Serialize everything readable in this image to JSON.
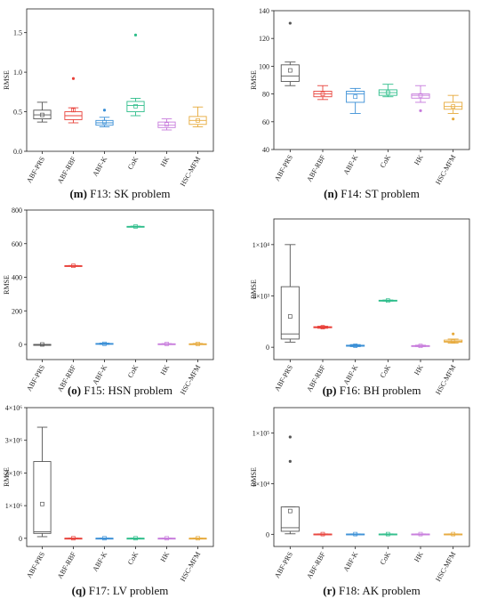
{
  "chart_data": [
    {
      "type": "box",
      "panel": "m",
      "caption_prefix": "(m)",
      "caption_text": " F13: SK problem",
      "ylabel": "RMSE",
      "ylim": [
        0,
        1.8
      ],
      "yticks": [
        0.0,
        0.5,
        1.0,
        1.5
      ],
      "ytick_labels": [
        "0.0",
        "0.5",
        "1.0",
        "1.5"
      ],
      "categories": [
        "ABF-PRS",
        "ABF-RBF",
        "ABF-K",
        "CoK",
        "HK",
        "HSC-MFM"
      ],
      "colors": [
        "#555555",
        "#e8413a",
        "#3a8fd6",
        "#2dbd8a",
        "#c77bdc",
        "#e6a93a"
      ],
      "boxes": [
        {
          "min": 0.37,
          "q1": 0.41,
          "median": 0.46,
          "q3": 0.52,
          "max": 0.62,
          "mean": 0.46,
          "outliers": []
        },
        {
          "min": 0.36,
          "q1": 0.4,
          "median": 0.45,
          "q3": 0.5,
          "max": 0.55,
          "mean": 0.52,
          "outliers": [
            0.92
          ]
        },
        {
          "min": 0.31,
          "q1": 0.33,
          "median": 0.36,
          "q3": 0.39,
          "max": 0.43,
          "mean": 0.37,
          "outliers": [
            0.52
          ]
        },
        {
          "min": 0.45,
          "q1": 0.5,
          "median": 0.58,
          "q3": 0.63,
          "max": 0.67,
          "mean": 0.57,
          "outliers": [
            1.47
          ]
        },
        {
          "min": 0.27,
          "q1": 0.3,
          "median": 0.33,
          "q3": 0.37,
          "max": 0.41,
          "mean": 0.34,
          "outliers": []
        },
        {
          "min": 0.31,
          "q1": 0.34,
          "median": 0.39,
          "q3": 0.44,
          "max": 0.56,
          "mean": 0.39,
          "outliers": []
        }
      ]
    },
    {
      "type": "box",
      "panel": "n",
      "caption_prefix": "(n)",
      "caption_text": " F14: ST problem",
      "ylabel": "RMSE",
      "ylim": [
        40,
        140
      ],
      "yticks": [
        40,
        60,
        80,
        100,
        120,
        140
      ],
      "ytick_labels": [
        "40",
        "60",
        "80",
        "100",
        "120",
        "140"
      ],
      "categories": [
        "ABF-PRS",
        "ABF-RBF",
        "ABF-K",
        "CoK",
        "HK",
        "HSC-MFM"
      ],
      "colors": [
        "#555555",
        "#e8413a",
        "#3a8fd6",
        "#2dbd8a",
        "#c77bdc",
        "#e6a93a"
      ],
      "boxes": [
        {
          "min": 86,
          "q1": 89,
          "median": 93,
          "q3": 101,
          "max": 103,
          "mean": 97,
          "outliers": [
            131
          ]
        },
        {
          "min": 76,
          "q1": 78,
          "median": 80,
          "q3": 82,
          "max": 86,
          "mean": 80,
          "outliers": []
        },
        {
          "min": 66,
          "q1": 74,
          "median": 80,
          "q3": 82,
          "max": 84,
          "mean": 78,
          "outliers": []
        },
        {
          "min": 78,
          "q1": 79,
          "median": 81,
          "q3": 83,
          "max": 87,
          "mean": 81,
          "outliers": []
        },
        {
          "min": 74,
          "q1": 77,
          "median": 79,
          "q3": 80,
          "max": 86,
          "mean": 79,
          "outliers": [
            68
          ]
        },
        {
          "min": 66,
          "q1": 69,
          "median": 71,
          "q3": 74,
          "max": 79,
          "mean": 71,
          "outliers": [
            62
          ]
        }
      ]
    },
    {
      "type": "box",
      "panel": "o",
      "caption_prefix": "(o)",
      "caption_text": " F15: HSN problem",
      "ylabel": "RMSE",
      "ylim": [
        -90,
        800
      ],
      "yticks": [
        0,
        200,
        400,
        600,
        800
      ],
      "ytick_labels": [
        "0",
        "200",
        "400",
        "600",
        "800"
      ],
      "categories": [
        "ABF-PRS",
        "ABF-RBF",
        "ABF-K",
        "CoK",
        "HK",
        "HSC-MFM"
      ],
      "colors": [
        "#555555",
        "#e8413a",
        "#3a8fd6",
        "#2dbd8a",
        "#c77bdc",
        "#e6a93a"
      ],
      "boxes": [
        {
          "min": 0,
          "q1": 0,
          "median": 0,
          "q3": 0,
          "max": 0,
          "mean": 0,
          "outliers": []
        },
        {
          "min": 466,
          "q1": 467,
          "median": 468,
          "q3": 469,
          "max": 470,
          "mean": 468,
          "outliers": []
        },
        {
          "min": 0,
          "q1": 2,
          "median": 4,
          "q3": 6,
          "max": 8,
          "mean": 4,
          "outliers": []
        },
        {
          "min": 700,
          "q1": 701,
          "median": 702,
          "q3": 703,
          "max": 704,
          "mean": 702,
          "outliers": []
        },
        {
          "min": 1,
          "q1": 2,
          "median": 3,
          "q3": 4,
          "max": 5,
          "mean": 3,
          "outliers": []
        },
        {
          "min": 1,
          "q1": 2,
          "median": 3,
          "q3": 4,
          "max": 6,
          "mean": 3,
          "outliers": []
        }
      ]
    },
    {
      "type": "box",
      "panel": "p",
      "caption_prefix": "(p)",
      "caption_text": " F16: BH problem",
      "ylabel": "RMSE",
      "ylim": [
        -1200,
        12500
      ],
      "yticks": [
        0,
        5000,
        10000
      ],
      "ytick_labels": [
        "0",
        "5×10³",
        "1×10⁴"
      ],
      "categories": [
        "ABF-PRS",
        "ABF-RBF",
        "ABF-K",
        "CoK",
        "HK",
        "HSC-MFM"
      ],
      "colors": [
        "#555555",
        "#e8413a",
        "#3a8fd6",
        "#2dbd8a",
        "#c77bdc",
        "#e6a93a"
      ],
      "boxes": [
        {
          "min": 500,
          "q1": 800,
          "median": 1300,
          "q3": 5900,
          "max": 10000,
          "mean": 3000,
          "outliers": []
        },
        {
          "min": 1850,
          "q1": 1900,
          "median": 1950,
          "q3": 2000,
          "max": 2050,
          "mean": 1950,
          "outliers": []
        },
        {
          "min": 60,
          "q1": 100,
          "median": 150,
          "q3": 200,
          "max": 260,
          "mean": 150,
          "outliers": []
        },
        {
          "min": 4500,
          "q1": 4520,
          "median": 4550,
          "q3": 4580,
          "max": 4600,
          "mean": 4550,
          "outliers": []
        },
        {
          "min": 70,
          "q1": 100,
          "median": 130,
          "q3": 160,
          "max": 200,
          "mean": 130,
          "outliers": []
        },
        {
          "min": 400,
          "q1": 500,
          "median": 580,
          "q3": 700,
          "max": 800,
          "mean": 600,
          "outliers": [
            1300
          ]
        }
      ]
    },
    {
      "type": "box",
      "panel": "q",
      "caption_prefix": "(q)",
      "caption_text": " F17: LV problem",
      "ylabel": "RMSE",
      "ylim": [
        -250000,
        4000000
      ],
      "yticks": [
        0,
        1000000,
        2000000,
        3000000,
        4000000
      ],
      "ytick_labels": [
        "0",
        "1×10⁶",
        "2×10⁶",
        "3×10⁶",
        "4×10⁶"
      ],
      "categories": [
        "ABF-PRS",
        "ABF-RBF",
        "ABF-K",
        "CoK",
        "HK",
        "HSC-MFM"
      ],
      "colors": [
        "#555555",
        "#e8413a",
        "#3a8fd6",
        "#2dbd8a",
        "#c77bdc",
        "#e6a93a"
      ],
      "boxes": [
        {
          "min": 50000,
          "q1": 150000,
          "median": 200000,
          "q3": 2350000,
          "max": 3400000,
          "mean": 1050000,
          "outliers": []
        },
        {
          "min": 0,
          "q1": 1000,
          "median": 2000,
          "q3": 3000,
          "max": 4000,
          "mean": 2000,
          "outliers": []
        },
        {
          "min": 0,
          "q1": 1000,
          "median": 2000,
          "q3": 3000,
          "max": 4000,
          "mean": 2000,
          "outliers": []
        },
        {
          "min": 0,
          "q1": 1000,
          "median": 2000,
          "q3": 3000,
          "max": 4000,
          "mean": 2000,
          "outliers": []
        },
        {
          "min": 0,
          "q1": 1000,
          "median": 2000,
          "q3": 3000,
          "max": 4000,
          "mean": 2000,
          "outliers": []
        },
        {
          "min": 0,
          "q1": 1000,
          "median": 2000,
          "q3": 3000,
          "max": 4000,
          "mean": 2000,
          "outliers": []
        }
      ]
    },
    {
      "type": "box",
      "panel": "r",
      "caption_prefix": "(r)",
      "caption_text": " F18: AK problem",
      "ylabel": "RMSE",
      "ylim": [
        -12000,
        125000
      ],
      "yticks": [
        0,
        50000,
        100000
      ],
      "ytick_labels": [
        "0",
        "5×10⁴",
        "1×10⁵"
      ],
      "categories": [
        "ABF-PRS",
        "ABF-RBF",
        "ABF-K",
        "CoK",
        "HK",
        "HSC-MFM"
      ],
      "colors": [
        "#555555",
        "#e8413a",
        "#3a8fd6",
        "#2dbd8a",
        "#c77bdc",
        "#e6a93a"
      ],
      "boxes": [
        {
          "min": 500,
          "q1": 3000,
          "median": 6500,
          "q3": 27000,
          "max": 27000,
          "mean": 23000,
          "outliers": [
            96000,
            72000
          ]
        },
        {
          "min": 0,
          "q1": 100,
          "median": 200,
          "q3": 300,
          "max": 400,
          "mean": 200,
          "outliers": []
        },
        {
          "min": 0,
          "q1": 100,
          "median": 200,
          "q3": 300,
          "max": 400,
          "mean": 200,
          "outliers": []
        },
        {
          "min": 0,
          "q1": 100,
          "median": 200,
          "q3": 300,
          "max": 400,
          "mean": 200,
          "outliers": []
        },
        {
          "min": 0,
          "q1": 100,
          "median": 200,
          "q3": 300,
          "max": 400,
          "mean": 200,
          "outliers": []
        },
        {
          "min": 0,
          "q1": 100,
          "median": 200,
          "q3": 300,
          "max": 400,
          "mean": 200,
          "outliers": []
        }
      ]
    }
  ]
}
